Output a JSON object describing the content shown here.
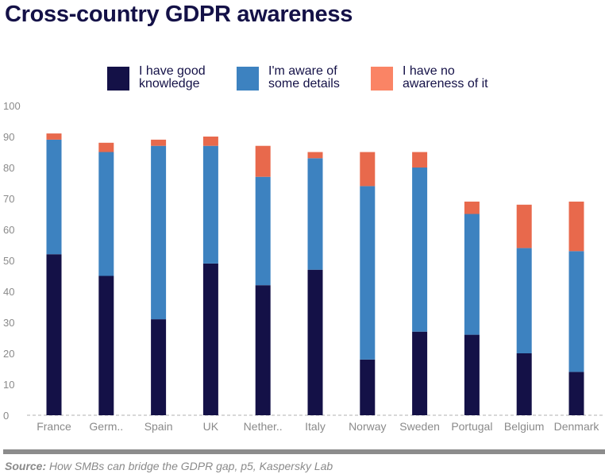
{
  "title": "Cross-country GDPR awareness",
  "source": {
    "label": "Source:",
    "text": "How SMBs can bridge the GDPR gap, p5, Kaspersky Lab"
  },
  "legend": [
    {
      "label": "I have good knowledge",
      "color": "#141147"
    },
    {
      "label": "I'm aware of some details",
      "color": "#3d82c0"
    },
    {
      "label": "I have no awareness of it",
      "color": "#fa8465"
    }
  ],
  "chart_data": {
    "type": "bar",
    "stacked": true,
    "categories": [
      "France",
      "Germ..",
      "Spain",
      "UK",
      "Nether..",
      "Italy",
      "Norway",
      "Sweden",
      "Portugal",
      "Belgium",
      "Denmark"
    ],
    "series": [
      {
        "name": "I have good knowledge",
        "color": "#141147",
        "values": [
          52,
          45,
          31,
          49,
          42,
          47,
          18,
          27,
          26,
          20,
          14
        ]
      },
      {
        "name": "I'm aware of some details",
        "color": "#3d82c0",
        "values": [
          37,
          40,
          56,
          38,
          35,
          36,
          56,
          53,
          39,
          34,
          39
        ]
      },
      {
        "name": "I have no awareness of it",
        "color": "#e8694c",
        "values": [
          2,
          3,
          2,
          3,
          10,
          2,
          11,
          5,
          4,
          14,
          16
        ]
      }
    ],
    "yticks": [
      0,
      10,
      20,
      30,
      40,
      50,
      60,
      70,
      80,
      90,
      100
    ],
    "ylim": [
      0,
      100
    ],
    "grid": false,
    "legend_position": "top"
  }
}
